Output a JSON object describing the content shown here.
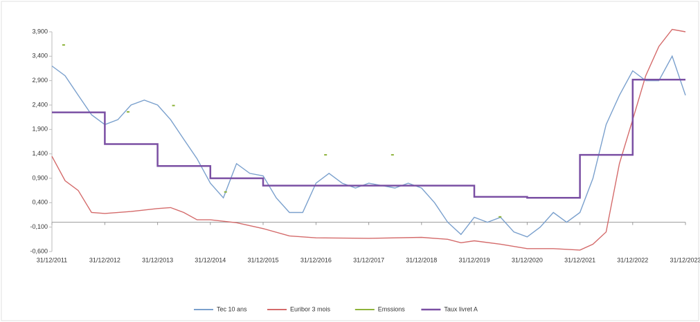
{
  "chart_data": {
    "type": "line",
    "xlim": [
      "2011-12-31",
      "2023-12-31"
    ],
    "xticks": [
      {
        "value": "2011-12-31",
        "label": "31/12/2011"
      },
      {
        "value": "2012-12-31",
        "label": "31/12/2012"
      },
      {
        "value": "2013-12-31",
        "label": "31/12/2013"
      },
      {
        "value": "2014-12-31",
        "label": "31/12/2014"
      },
      {
        "value": "2015-12-31",
        "label": "31/12/2015"
      },
      {
        "value": "2016-12-31",
        "label": "31/12/2016"
      },
      {
        "value": "2017-12-31",
        "label": "31/12/2017"
      },
      {
        "value": "2018-12-31",
        "label": "31/12/2018"
      },
      {
        "value": "2019-12-31",
        "label": "31/12/2019"
      },
      {
        "value": "2020-12-31",
        "label": "31/12/2020"
      },
      {
        "value": "2021-12-31",
        "label": "31/12/2021"
      },
      {
        "value": "2022-12-31",
        "label": "31/12/2022"
      },
      {
        "value": "2023-12-31",
        "label": "31/12/2023"
      }
    ],
    "ylim": [
      -0.6,
      3.9
    ],
    "yticks": [
      {
        "value": -0.6,
        "label": "-0,600"
      },
      {
        "value": -0.1,
        "label": "-0,100"
      },
      {
        "value": 0.4,
        "label": "0,400"
      },
      {
        "value": 0.9,
        "label": "0,900"
      },
      {
        "value": 1.4,
        "label": "1,400"
      },
      {
        "value": 1.9,
        "label": "1,900"
      },
      {
        "value": 2.4,
        "label": "2,400"
      },
      {
        "value": 2.9,
        "label": "2,900"
      },
      {
        "value": 3.4,
        "label": "3,400"
      },
      {
        "value": 3.9,
        "label": "3,900"
      }
    ],
    "legend": "bottom",
    "series": [
      {
        "name": "Tec 10 ans",
        "color": "#7aa0cd",
        "type": "line",
        "x": [
          "2011-12-31",
          "2012-03-31",
          "2012-06-30",
          "2012-09-30",
          "2012-12-31",
          "2013-03-31",
          "2013-06-30",
          "2013-09-30",
          "2013-12-31",
          "2014-03-31",
          "2014-06-30",
          "2014-09-30",
          "2014-12-31",
          "2015-03-31",
          "2015-06-30",
          "2015-09-30",
          "2015-12-31",
          "2016-03-31",
          "2016-06-30",
          "2016-09-30",
          "2016-12-31",
          "2017-03-31",
          "2017-06-30",
          "2017-09-30",
          "2017-12-31",
          "2018-03-31",
          "2018-06-30",
          "2018-09-30",
          "2018-12-31",
          "2019-03-31",
          "2019-06-30",
          "2019-09-30",
          "2019-12-31",
          "2020-03-31",
          "2020-06-30",
          "2020-09-30",
          "2020-12-31",
          "2021-03-31",
          "2021-06-30",
          "2021-09-30",
          "2021-12-31",
          "2022-03-31",
          "2022-06-30",
          "2022-09-30",
          "2022-12-31",
          "2023-03-31",
          "2023-06-30",
          "2023-09-30",
          "2023-12-31"
        ],
        "values": [
          3.2,
          3.0,
          2.6,
          2.2,
          2.0,
          2.1,
          2.4,
          2.5,
          2.4,
          2.1,
          1.7,
          1.3,
          0.8,
          0.5,
          1.2,
          1.0,
          0.95,
          0.5,
          0.2,
          0.2,
          0.8,
          1.0,
          0.8,
          0.7,
          0.8,
          0.75,
          0.7,
          0.8,
          0.7,
          0.4,
          0.0,
          -0.25,
          0.1,
          0.0,
          0.1,
          -0.2,
          -0.3,
          -0.1,
          0.2,
          0.0,
          0.2,
          0.9,
          2.0,
          2.6,
          3.1,
          2.9,
          2.9,
          3.4,
          2.6
        ]
      },
      {
        "name": "Euribor 3 mois",
        "color": "#d46a6a",
        "type": "line",
        "x": [
          "2011-12-31",
          "2012-03-31",
          "2012-06-30",
          "2012-09-30",
          "2012-12-31",
          "2013-06-30",
          "2013-12-31",
          "2014-03-31",
          "2014-06-30",
          "2014-09-30",
          "2014-12-31",
          "2015-06-30",
          "2015-12-31",
          "2016-06-30",
          "2016-12-31",
          "2017-12-31",
          "2018-12-31",
          "2019-06-30",
          "2019-09-30",
          "2019-12-31",
          "2020-06-30",
          "2020-12-31",
          "2021-06-30",
          "2021-12-31",
          "2022-03-31",
          "2022-06-30",
          "2022-09-30",
          "2022-12-31",
          "2023-03-31",
          "2023-06-30",
          "2023-09-30",
          "2023-12-31"
        ],
        "values": [
          1.35,
          0.85,
          0.65,
          0.2,
          0.18,
          0.22,
          0.28,
          0.3,
          0.2,
          0.05,
          0.05,
          -0.01,
          -0.13,
          -0.28,
          -0.32,
          -0.33,
          -0.31,
          -0.35,
          -0.42,
          -0.38,
          -0.45,
          -0.54,
          -0.54,
          -0.57,
          -0.45,
          -0.2,
          1.2,
          2.1,
          3.0,
          3.6,
          3.95,
          3.9
        ]
      },
      {
        "name": "Emssions",
        "color": "#8db33a",
        "type": "scatter",
        "x": [
          "2012-03-21",
          "2013-06-10",
          "2014-04-20",
          "2015-04-15",
          "2017-03-07",
          "2018-06-13",
          "2020-06-26"
        ],
        "values": [
          3.63,
          2.26,
          2.39,
          0.62,
          1.38,
          1.38,
          0.11
        ]
      },
      {
        "name": "Taux livret A",
        "color": "#7a4fa3",
        "type": "step",
        "x": [
          "2011-12-31",
          "2012-12-31",
          "2013-12-31",
          "2014-12-31",
          "2015-12-31",
          "2019-12-31",
          "2020-12-31",
          "2021-12-31",
          "2022-12-31",
          "2023-12-31"
        ],
        "values": [
          2.25,
          1.6,
          1.15,
          0.9,
          0.75,
          0.52,
          0.5,
          1.38,
          2.92,
          2.92
        ]
      }
    ]
  }
}
